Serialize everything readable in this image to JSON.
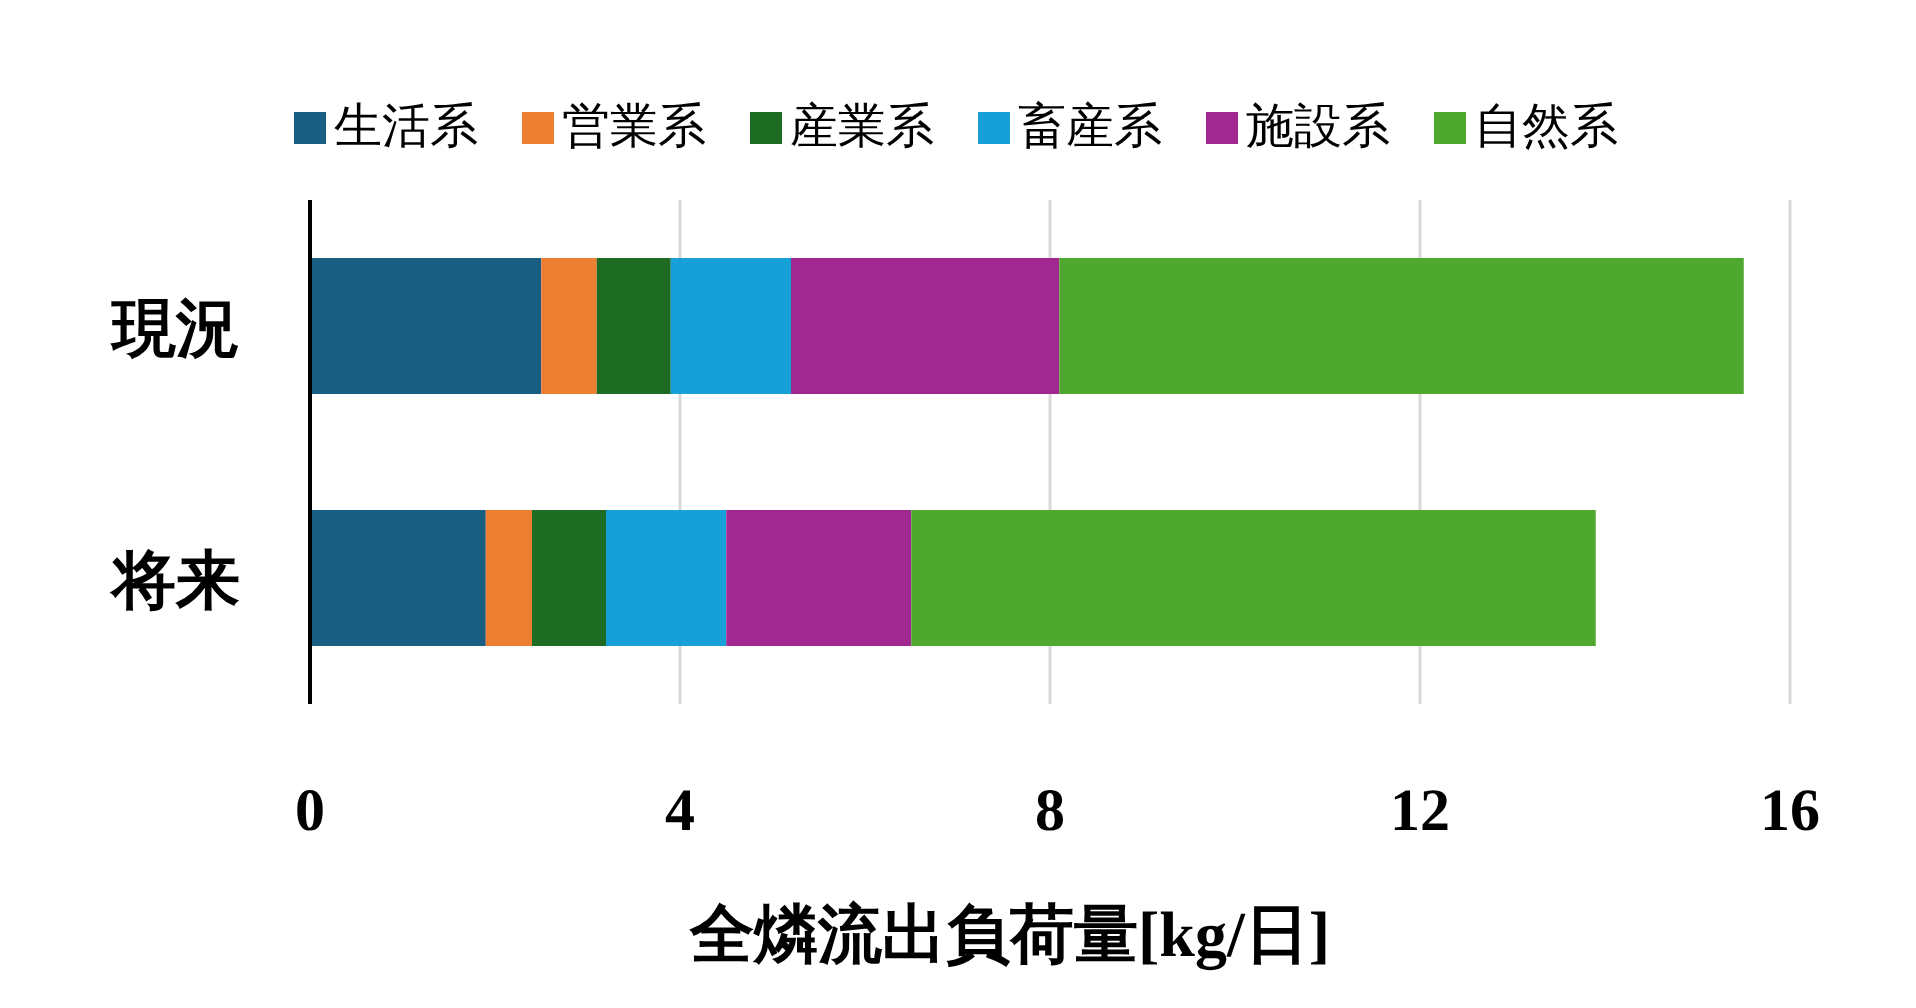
{
  "chart_data": {
    "type": "bar",
    "orientation": "horizontal",
    "stacked": true,
    "categories": [
      "現況",
      "将来"
    ],
    "series": [
      {
        "name": "生活系",
        "color": "#175e82",
        "values": [
          2.5,
          1.9
        ]
      },
      {
        "name": "営業系",
        "color": "#ed7d31",
        "values": [
          0.6,
          0.5
        ]
      },
      {
        "name": "産業系",
        "color": "#1e6b24",
        "values": [
          0.8,
          0.8
        ]
      },
      {
        "name": "畜産系",
        "color": "#179fd8",
        "values": [
          1.3,
          1.3
        ]
      },
      {
        "name": "施設系",
        "color": "#a0288e",
        "values": [
          2.9,
          2.0
        ]
      },
      {
        "name": "自然系",
        "color": "#4ea72e",
        "values": [
          7.4,
          7.4
        ]
      }
    ],
    "xlim": [
      0,
      16
    ],
    "xticks": [
      0,
      4,
      8,
      12,
      16
    ],
    "xlabel": "全燐流出負荷量[kg/日]",
    "grid": "x",
    "legend": "top"
  }
}
